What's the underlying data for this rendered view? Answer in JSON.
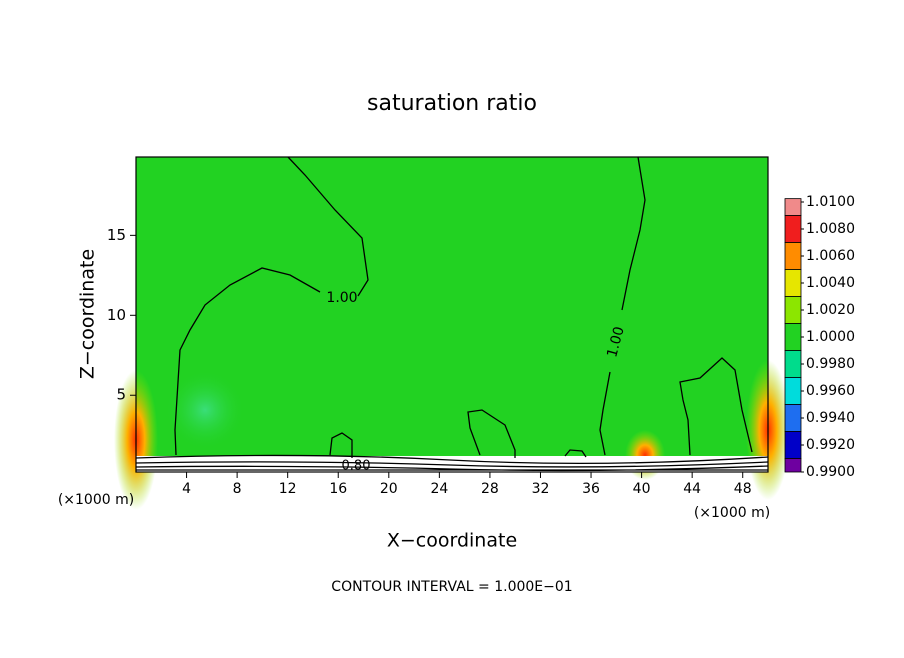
{
  "chart_data": {
    "type": "contour",
    "title": "saturation ratio",
    "xlabel": "X−coordinate",
    "ylabel": "Z−coordinate",
    "x_unit_label": "(×1000 m)",
    "footer": "CONTOUR INTERVAL = 1.000E−01",
    "xlim": [
      0,
      50
    ],
    "ylim": [
      0.2,
      19.9
    ],
    "xticks": [
      4,
      8,
      12,
      16,
      20,
      24,
      28,
      32,
      36,
      40,
      44,
      48
    ],
    "yticks": [
      5,
      10,
      15
    ],
    "field_color": "#22d222",
    "contour_labels": [
      "1.00",
      "1.00",
      "0.80"
    ],
    "colorbar": {
      "ticks": [
        {
          "value": 1.01,
          "label": "1.0100"
        },
        {
          "value": 1.008,
          "label": "1.0080"
        },
        {
          "value": 1.006,
          "label": "1.0060"
        },
        {
          "value": 1.004,
          "label": "1.0040"
        },
        {
          "value": 1.002,
          "label": "1.0020"
        },
        {
          "value": 1.0,
          "label": "1.0000"
        },
        {
          "value": 0.998,
          "label": "0.9980"
        },
        {
          "value": 0.996,
          "label": "0.9960"
        },
        {
          "value": 0.994,
          "label": "0.9940"
        },
        {
          "value": 0.992,
          "label": "0.9920"
        },
        {
          "value": 0.99,
          "label": "0.9900"
        }
      ],
      "colors": [
        "#f08a8a",
        "#f01e1e",
        "#ff8c00",
        "#e6e600",
        "#8ce600",
        "#22d222",
        "#00dc8c",
        "#00dcdc",
        "#1e6ef0",
        "#0000c8",
        "#6e00a0"
      ]
    }
  }
}
